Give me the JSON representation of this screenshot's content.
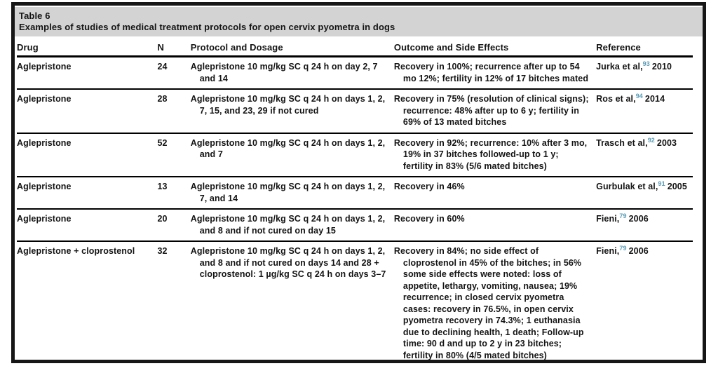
{
  "figure": {
    "label": "Table 6",
    "caption": "Examples of studies of medical treatment protocols for open cervix pyometra in dogs"
  },
  "columns": [
    "Drug",
    "N",
    "Protocol and Dosage",
    "Outcome and Side Effects",
    "Reference"
  ],
  "rows": [
    {
      "drug": "Aglepristone",
      "n": "24",
      "protocol": "Aglepristone 10 mg/kg SC q 24 h on day 2, 7 and 14",
      "outcome": "Recovery in 100%; recurrence after up to 54 mo 12%; fertility in 12% of 17 bitches mated",
      "ref_name": "Jurka et al,",
      "ref_sup": "93",
      "ref_year": "2010"
    },
    {
      "drug": "Aglepristone",
      "n": "28",
      "protocol": "Aglepristone 10 mg/kg SC q 24 h on days 1, 2, 7, 15, and 23, 29 if not cured",
      "outcome": "Recovery in 75% (resolution of clinical signs); recurrence: 48% after up to 6 y; fertility in 69% of 13 mated bitches",
      "ref_name": "Ros et al,",
      "ref_sup": "94",
      "ref_year": "2014"
    },
    {
      "drug": "Aglepristone",
      "n": "52",
      "protocol": "Aglepristone 10 mg/kg SC q 24 h on days 1, 2, and 7",
      "outcome": "Recovery in 92%; recurrence: 10% after 3 mo, 19% in 37 bitches followed-up to 1 y; fertility in 83% (5/6 mated bitches)",
      "ref_name": "Trasch et al,",
      "ref_sup": "92",
      "ref_year": "2003"
    },
    {
      "drug": "Aglepristone",
      "n": "13",
      "protocol": "Aglepristone 10 mg/kg SC q 24 h on days 1, 2, 7, and 14",
      "outcome": "Recovery in 46%",
      "ref_name": "Gurbulak et al,",
      "ref_sup": "91",
      "ref_year": "2005"
    },
    {
      "drug": "Aglepristone",
      "n": "20",
      "protocol": "Aglepristone 10 mg/kg SC q 24 h on days 1, 2, and 8 and if not cured on day 15",
      "outcome": "Recovery in 60%",
      "ref_name": "Fieni,",
      "ref_sup": "79",
      "ref_year": "2006"
    },
    {
      "drug": "Aglepristone + cloprostenol",
      "n": "32",
      "protocol": "Aglepristone 10 mg/kg SC q 24 h on days 1, 2, and 8 and if not cured on days 14 and 28 + cloprostenol: 1 µg/kg SC q 24 h on days 3–7",
      "outcome": "Recovery in 84%; no side effect of cloprostenol in 45% of the bitches; in 56% some side effects were noted: loss of appetite, lethargy, vomiting, nausea; 19% recurrence; in closed cervix pyometra cases: recovery in 76.5%, in open cervix pyometra recovery in 74.3%; 1 euthanasia due to declining health, 1 death; Follow-up time: 90 d and up to 2 y in 23 bitches; fertility in 80% (4/5 mated bitches)",
      "ref_name": "Fieni,",
      "ref_sup": "79",
      "ref_year": "2006"
    }
  ],
  "colors": {
    "title_band_bg": "#d3d3d3",
    "citation_superscript": "#5b9bb5",
    "rule": "#000000",
    "frame": "#161616",
    "text": "#141414"
  }
}
